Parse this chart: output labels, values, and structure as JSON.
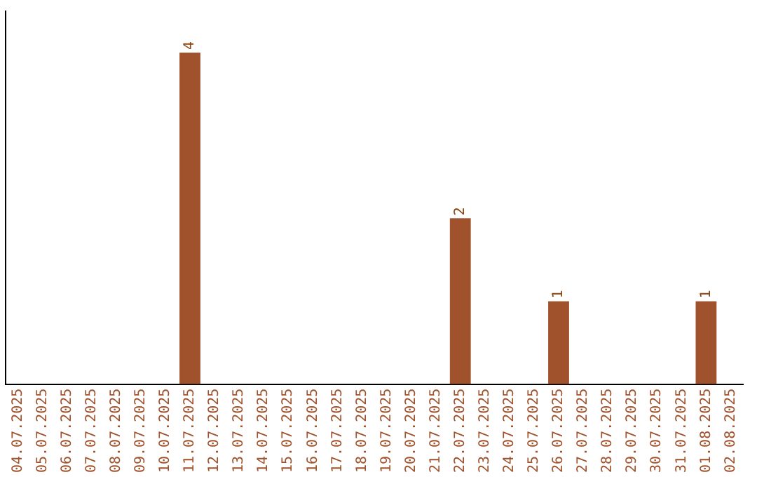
{
  "chart_data": {
    "type": "bar",
    "categories": [
      "04.07.2025",
      "05.07.2025",
      "06.07.2025",
      "07.07.2025",
      "08.07.2025",
      "09.07.2025",
      "10.07.2025",
      "11.07.2025",
      "12.07.2025",
      "13.07.2025",
      "14.07.2025",
      "15.07.2025",
      "16.07.2025",
      "17.07.2025",
      "18.07.2025",
      "19.07.2025",
      "20.07.2025",
      "21.07.2025",
      "22.07.2025",
      "23.07.2025",
      "24.07.2025",
      "25.07.2025",
      "26.07.2025",
      "27.07.2025",
      "28.07.2025",
      "29.07.2025",
      "30.07.2025",
      "31.07.2025",
      "01.08.2025",
      "02.08.2025"
    ],
    "values": [
      0,
      0,
      0,
      0,
      0,
      0,
      0,
      4,
      0,
      0,
      0,
      0,
      0,
      0,
      0,
      0,
      0,
      0,
      2,
      0,
      0,
      0,
      1,
      0,
      0,
      0,
      0,
      0,
      1,
      0
    ],
    "value_labels": [
      null,
      null,
      null,
      null,
      null,
      null,
      null,
      "4",
      null,
      null,
      null,
      null,
      null,
      null,
      null,
      null,
      null,
      null,
      "2",
      null,
      null,
      null,
      "1",
      null,
      null,
      null,
      null,
      null,
      "1",
      null
    ],
    "color": "#a0522d"
  }
}
